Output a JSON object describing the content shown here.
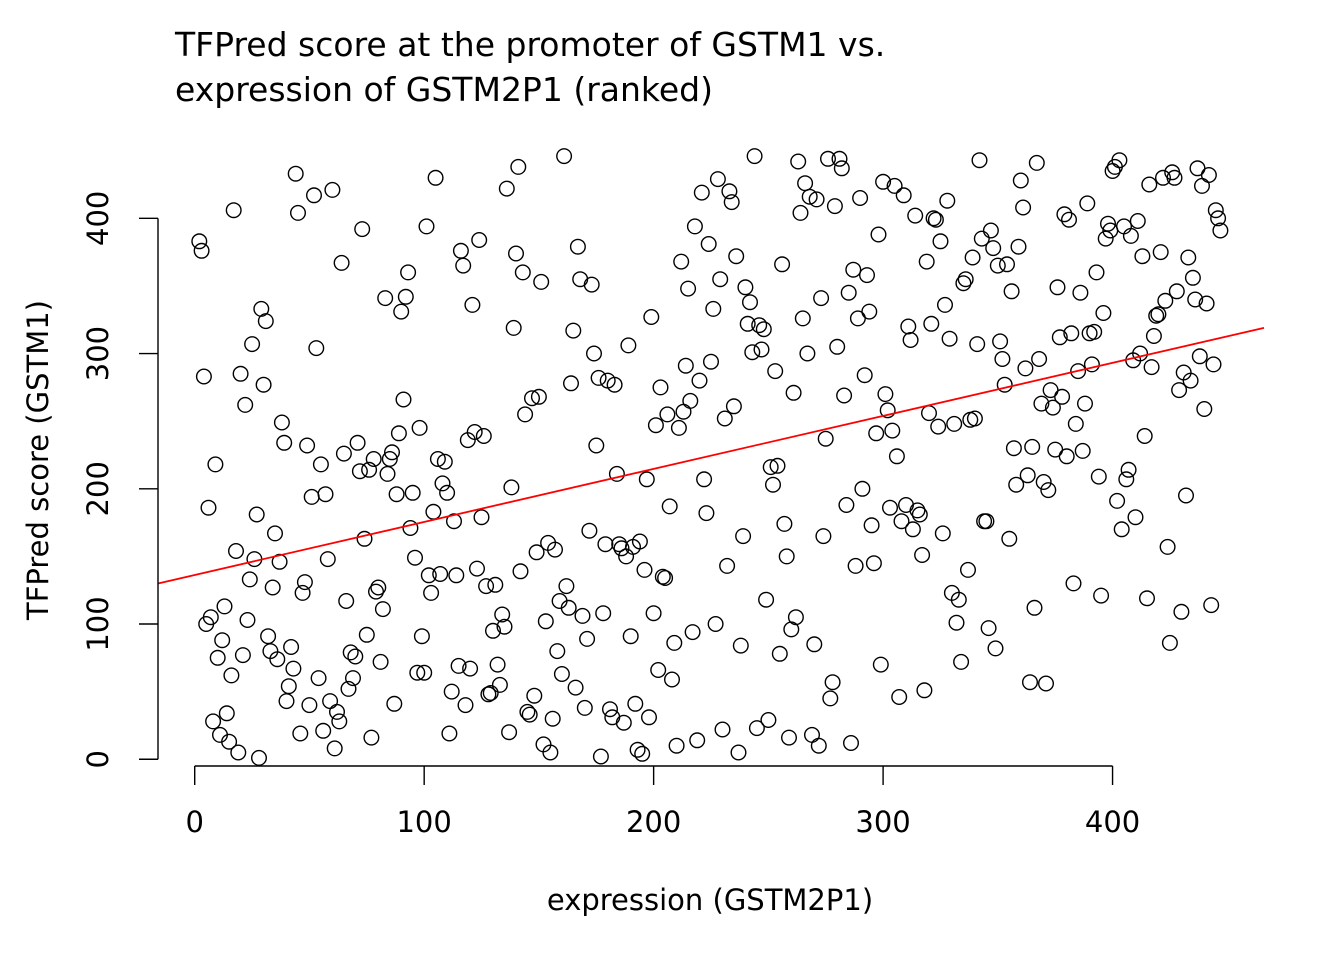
{
  "chart_data": {
    "type": "scatter",
    "title_lines": [
      "TFPred score at the promoter of GSTM1 vs.",
      "expression of GSTM2P1 (ranked)"
    ],
    "xlabel": "expression (GSTM2P1)",
    "ylabel": "TFPred score (GSTM1)",
    "xlim": [
      -16,
      466
    ],
    "ylim": [
      -5,
      452
    ],
    "x_ticks": [
      0,
      100,
      200,
      300,
      400
    ],
    "y_ticks": [
      0,
      100,
      200,
      300,
      400
    ],
    "grid": false,
    "legend": "none",
    "point_color": "#000000",
    "fit_line": {
      "color": "#ff0000",
      "x": [
        -16,
        466
      ],
      "y": [
        130,
        319
      ]
    },
    "points": [
      [
        2,
        383
      ],
      [
        3,
        376
      ],
      [
        4,
        283
      ],
      [
        5,
        100
      ],
      [
        6,
        186
      ],
      [
        7,
        105
      ],
      [
        8,
        28
      ],
      [
        9,
        218
      ],
      [
        10,
        75
      ],
      [
        11,
        18
      ],
      [
        12,
        88
      ],
      [
        13,
        113
      ],
      [
        14,
        34
      ],
      [
        15,
        13
      ],
      [
        16,
        62
      ],
      [
        17,
        406
      ],
      [
        18,
        154
      ],
      [
        19,
        5
      ],
      [
        20,
        285
      ],
      [
        21,
        77
      ],
      [
        22,
        262
      ],
      [
        23,
        103
      ],
      [
        24,
        133
      ],
      [
        25,
        307
      ],
      [
        26,
        148
      ],
      [
        27,
        181
      ],
      [
        28,
        1
      ],
      [
        29,
        333
      ],
      [
        30,
        277
      ],
      [
        31,
        324
      ],
      [
        32,
        91
      ],
      [
        33,
        80
      ],
      [
        34,
        127
      ],
      [
        35,
        167
      ],
      [
        36,
        74
      ],
      [
        37,
        146
      ],
      [
        38,
        249
      ],
      [
        39,
        234
      ],
      [
        40,
        43
      ],
      [
        41,
        54
      ],
      [
        42,
        83
      ],
      [
        43,
        67
      ],
      [
        44,
        433
      ],
      [
        45,
        404
      ],
      [
        46,
        19
      ],
      [
        47,
        123
      ],
      [
        48,
        131
      ],
      [
        49,
        232
      ],
      [
        50,
        40
      ],
      [
        51,
        194
      ],
      [
        52,
        417
      ],
      [
        53,
        304
      ],
      [
        54,
        60
      ],
      [
        55,
        218
      ],
      [
        56,
        21
      ],
      [
        57,
        196
      ],
      [
        58,
        148
      ],
      [
        59,
        43
      ],
      [
        60,
        421
      ],
      [
        61,
        8
      ],
      [
        62,
        35
      ],
      [
        63,
        28
      ],
      [
        64,
        367
      ],
      [
        65,
        226
      ],
      [
        66,
        117
      ],
      [
        67,
        52
      ],
      [
        68,
        79
      ],
      [
        69,
        60
      ],
      [
        70,
        76
      ],
      [
        71,
        234
      ],
      [
        72,
        213
      ],
      [
        73,
        392
      ],
      [
        74,
        163
      ],
      [
        75,
        92
      ],
      [
        76,
        214
      ],
      [
        77,
        16
      ],
      [
        78,
        222
      ],
      [
        79,
        124
      ],
      [
        80,
        127
      ],
      [
        81,
        72
      ],
      [
        82,
        111
      ],
      [
        83,
        341
      ],
      [
        84,
        211
      ],
      [
        85,
        222
      ],
      [
        86,
        227
      ],
      [
        87,
        41
      ],
      [
        88,
        196
      ],
      [
        89,
        241
      ],
      [
        90,
        331
      ],
      [
        91,
        266
      ],
      [
        92,
        342
      ],
      [
        93,
        360
      ],
      [
        94,
        171
      ],
      [
        95,
        197
      ],
      [
        96,
        149
      ],
      [
        97,
        64
      ],
      [
        98,
        245
      ],
      [
        99,
        91
      ],
      [
        100,
        64
      ],
      [
        101,
        394
      ],
      [
        102,
        136
      ],
      [
        103,
        123
      ],
      [
        104,
        183
      ],
      [
        105,
        430
      ],
      [
        106,
        222
      ],
      [
        107,
        137
      ],
      [
        108,
        204
      ],
      [
        109,
        220
      ],
      [
        110,
        197
      ],
      [
        111,
        19
      ],
      [
        112,
        50
      ],
      [
        113,
        176
      ],
      [
        114,
        136
      ],
      [
        115,
        69
      ],
      [
        116,
        376
      ],
      [
        117,
        365
      ],
      [
        118,
        40
      ],
      [
        119,
        236
      ],
      [
        120,
        67
      ],
      [
        121,
        336
      ],
      [
        122,
        242
      ],
      [
        123,
        141
      ],
      [
        124,
        384
      ],
      [
        125,
        179
      ],
      [
        126,
        239
      ],
      [
        127,
        128
      ],
      [
        128,
        48
      ],
      [
        129,
        49
      ],
      [
        130,
        95
      ],
      [
        131,
        129
      ],
      [
        132,
        70
      ],
      [
        133,
        55
      ],
      [
        134,
        107
      ],
      [
        135,
        98
      ],
      [
        136,
        422
      ],
      [
        137,
        20
      ],
      [
        138,
        201
      ],
      [
        139,
        319
      ],
      [
        140,
        374
      ],
      [
        141,
        438
      ],
      [
        142,
        139
      ],
      [
        143,
        360
      ],
      [
        144,
        255
      ],
      [
        145,
        35
      ],
      [
        146,
        33
      ],
      [
        147,
        267
      ],
      [
        148,
        47
      ],
      [
        149,
        153
      ],
      [
        150,
        268
      ],
      [
        151,
        353
      ],
      [
        152,
        11
      ],
      [
        153,
        102
      ],
      [
        154,
        160
      ],
      [
        155,
        5
      ],
      [
        156,
        30
      ],
      [
        157,
        155
      ],
      [
        158,
        80
      ],
      [
        159,
        117
      ],
      [
        160,
        63
      ],
      [
        161,
        446
      ],
      [
        162,
        128
      ],
      [
        163,
        112
      ],
      [
        164,
        278
      ],
      [
        165,
        317
      ],
      [
        166,
        53
      ],
      [
        167,
        379
      ],
      [
        168,
        355
      ],
      [
        169,
        106
      ],
      [
        170,
        38
      ],
      [
        171,
        89
      ],
      [
        172,
        169
      ],
      [
        173,
        351
      ],
      [
        174,
        300
      ],
      [
        175,
        232
      ],
      [
        176,
        282
      ],
      [
        177,
        2
      ],
      [
        178,
        108
      ],
      [
        179,
        159
      ],
      [
        180,
        280
      ],
      [
        181,
        37
      ],
      [
        182,
        31
      ],
      [
        183,
        277
      ],
      [
        184,
        211
      ],
      [
        185,
        159
      ],
      [
        186,
        156
      ],
      [
        187,
        27
      ],
      [
        188,
        150
      ],
      [
        189,
        306
      ],
      [
        190,
        91
      ],
      [
        191,
        157
      ],
      [
        192,
        41
      ],
      [
        193,
        7
      ],
      [
        194,
        161
      ],
      [
        195,
        4
      ],
      [
        196,
        140
      ],
      [
        197,
        207
      ],
      [
        198,
        31
      ],
      [
        199,
        327
      ],
      [
        200,
        108
      ],
      [
        201,
        247
      ],
      [
        202,
        66
      ],
      [
        203,
        275
      ],
      [
        204,
        135
      ],
      [
        205,
        134
      ],
      [
        206,
        255
      ],
      [
        207,
        187
      ],
      [
        208,
        59
      ],
      [
        209,
        86
      ],
      [
        210,
        10
      ],
      [
        211,
        245
      ],
      [
        212,
        368
      ],
      [
        213,
        257
      ],
      [
        214,
        291
      ],
      [
        215,
        348
      ],
      [
        216,
        265
      ],
      [
        217,
        94
      ],
      [
        218,
        394
      ],
      [
        219,
        14
      ],
      [
        220,
        280
      ],
      [
        221,
        419
      ],
      [
        222,
        207
      ],
      [
        223,
        182
      ],
      [
        224,
        381
      ],
      [
        225,
        294
      ],
      [
        226,
        333
      ],
      [
        227,
        100
      ],
      [
        228,
        429
      ],
      [
        229,
        355
      ],
      [
        230,
        22
      ],
      [
        231,
        252
      ],
      [
        232,
        143
      ],
      [
        233,
        420
      ],
      [
        234,
        412
      ],
      [
        235,
        261
      ],
      [
        236,
        372
      ],
      [
        237,
        5
      ],
      [
        238,
        84
      ],
      [
        239,
        165
      ],
      [
        240,
        349
      ],
      [
        241,
        322
      ],
      [
        242,
        338
      ],
      [
        243,
        301
      ],
      [
        244,
        446
      ],
      [
        245,
        23
      ],
      [
        246,
        321
      ],
      [
        247,
        303
      ],
      [
        248,
        318
      ],
      [
        249,
        118
      ],
      [
        250,
        29
      ],
      [
        251,
        216
      ],
      [
        252,
        203
      ],
      [
        253,
        287
      ],
      [
        254,
        217
      ],
      [
        255,
        78
      ],
      [
        256,
        366
      ],
      [
        257,
        174
      ],
      [
        258,
        150
      ],
      [
        259,
        16
      ],
      [
        260,
        96
      ],
      [
        261,
        271
      ],
      [
        262,
        105
      ],
      [
        263,
        442
      ],
      [
        264,
        404
      ],
      [
        265,
        326
      ],
      [
        266,
        426
      ],
      [
        267,
        300
      ],
      [
        268,
        416
      ],
      [
        269,
        18
      ],
      [
        270,
        85
      ],
      [
        271,
        414
      ],
      [
        272,
        10
      ],
      [
        273,
        341
      ],
      [
        274,
        165
      ],
      [
        275,
        237
      ],
      [
        276,
        444
      ],
      [
        277,
        45
      ],
      [
        278,
        57
      ],
      [
        279,
        409
      ],
      [
        280,
        305
      ],
      [
        281,
        444
      ],
      [
        282,
        437
      ],
      [
        283,
        269
      ],
      [
        284,
        188
      ],
      [
        285,
        345
      ],
      [
        286,
        12
      ],
      [
        287,
        362
      ],
      [
        288,
        143
      ],
      [
        289,
        326
      ],
      [
        290,
        415
      ],
      [
        291,
        200
      ],
      [
        292,
        284
      ],
      [
        293,
        358
      ],
      [
        294,
        331
      ],
      [
        295,
        173
      ],
      [
        296,
        145
      ],
      [
        297,
        241
      ],
      [
        298,
        388
      ],
      [
        299,
        70
      ],
      [
        300,
        427
      ],
      [
        301,
        270
      ],
      [
        302,
        258
      ],
      [
        303,
        186
      ],
      [
        304,
        243
      ],
      [
        305,
        424
      ],
      [
        306,
        224
      ],
      [
        307,
        46
      ],
      [
        308,
        176
      ],
      [
        309,
        417
      ],
      [
        310,
        188
      ],
      [
        311,
        320
      ],
      [
        312,
        310
      ],
      [
        313,
        170
      ],
      [
        314,
        402
      ],
      [
        315,
        184
      ],
      [
        316,
        181
      ],
      [
        317,
        151
      ],
      [
        318,
        51
      ],
      [
        319,
        368
      ],
      [
        320,
        256
      ],
      [
        321,
        322
      ],
      [
        322,
        400
      ],
      [
        323,
        399
      ],
      [
        324,
        246
      ],
      [
        325,
        383
      ],
      [
        326,
        167
      ],
      [
        327,
        336
      ],
      [
        328,
        413
      ],
      [
        329,
        311
      ],
      [
        330,
        123
      ],
      [
        331,
        248
      ],
      [
        332,
        101
      ],
      [
        333,
        118
      ],
      [
        334,
        72
      ],
      [
        335,
        352
      ],
      [
        336,
        355
      ],
      [
        337,
        140
      ],
      [
        338,
        251
      ],
      [
        339,
        371
      ],
      [
        340,
        252
      ],
      [
        341,
        307
      ],
      [
        342,
        443
      ],
      [
        343,
        385
      ],
      [
        344,
        176
      ],
      [
        345,
        176
      ],
      [
        346,
        97
      ],
      [
        347,
        391
      ],
      [
        348,
        378
      ],
      [
        349,
        82
      ],
      [
        350,
        365
      ],
      [
        351,
        309
      ],
      [
        352,
        296
      ],
      [
        353,
        277
      ],
      [
        354,
        366
      ],
      [
        355,
        163
      ],
      [
        356,
        346
      ],
      [
        357,
        230
      ],
      [
        358,
        203
      ],
      [
        359,
        379
      ],
      [
        360,
        428
      ],
      [
        361,
        408
      ],
      [
        362,
        289
      ],
      [
        363,
        210
      ],
      [
        364,
        57
      ],
      [
        365,
        231
      ],
      [
        366,
        112
      ],
      [
        367,
        441
      ],
      [
        368,
        296
      ],
      [
        369,
        263
      ],
      [
        370,
        205
      ],
      [
        371,
        56
      ],
      [
        372,
        199
      ],
      [
        373,
        273
      ],
      [
        374,
        260
      ],
      [
        375,
        229
      ],
      [
        376,
        349
      ],
      [
        377,
        312
      ],
      [
        378,
        268
      ],
      [
        379,
        403
      ],
      [
        380,
        224
      ],
      [
        381,
        399
      ],
      [
        382,
        315
      ],
      [
        383,
        130
      ],
      [
        384,
        248
      ],
      [
        385,
        287
      ],
      [
        386,
        345
      ],
      [
        387,
        228
      ],
      [
        388,
        263
      ],
      [
        389,
        411
      ],
      [
        390,
        315
      ],
      [
        391,
        292
      ],
      [
        392,
        316
      ],
      [
        393,
        360
      ],
      [
        394,
        209
      ],
      [
        395,
        121
      ],
      [
        396,
        330
      ],
      [
        397,
        385
      ],
      [
        398,
        396
      ],
      [
        399,
        391
      ],
      [
        400,
        435
      ],
      [
        401,
        438
      ],
      [
        402,
        191
      ],
      [
        403,
        443
      ],
      [
        404,
        170
      ],
      [
        405,
        394
      ],
      [
        406,
        207
      ],
      [
        407,
        214
      ],
      [
        408,
        387
      ],
      [
        409,
        295
      ],
      [
        410,
        179
      ],
      [
        411,
        398
      ],
      [
        412,
        300
      ],
      [
        413,
        372
      ],
      [
        414,
        239
      ],
      [
        415,
        119
      ],
      [
        416,
        425
      ],
      [
        417,
        290
      ],
      [
        418,
        313
      ],
      [
        419,
        328
      ],
      [
        420,
        329
      ],
      [
        421,
        375
      ],
      [
        422,
        430
      ],
      [
        423,
        339
      ],
      [
        424,
        157
      ],
      [
        425,
        86
      ],
      [
        426,
        434
      ],
      [
        427,
        430
      ],
      [
        428,
        346
      ],
      [
        429,
        273
      ],
      [
        430,
        109
      ],
      [
        431,
        286
      ],
      [
        432,
        195
      ],
      [
        433,
        371
      ],
      [
        434,
        280
      ],
      [
        435,
        356
      ],
      [
        436,
        340
      ],
      [
        437,
        437
      ],
      [
        438,
        298
      ],
      [
        439,
        424
      ],
      [
        440,
        259
      ],
      [
        441,
        337
      ],
      [
        442,
        432
      ],
      [
        443,
        114
      ],
      [
        444,
        292
      ],
      [
        445,
        406
      ],
      [
        446,
        400
      ],
      [
        447,
        391
      ]
    ]
  }
}
